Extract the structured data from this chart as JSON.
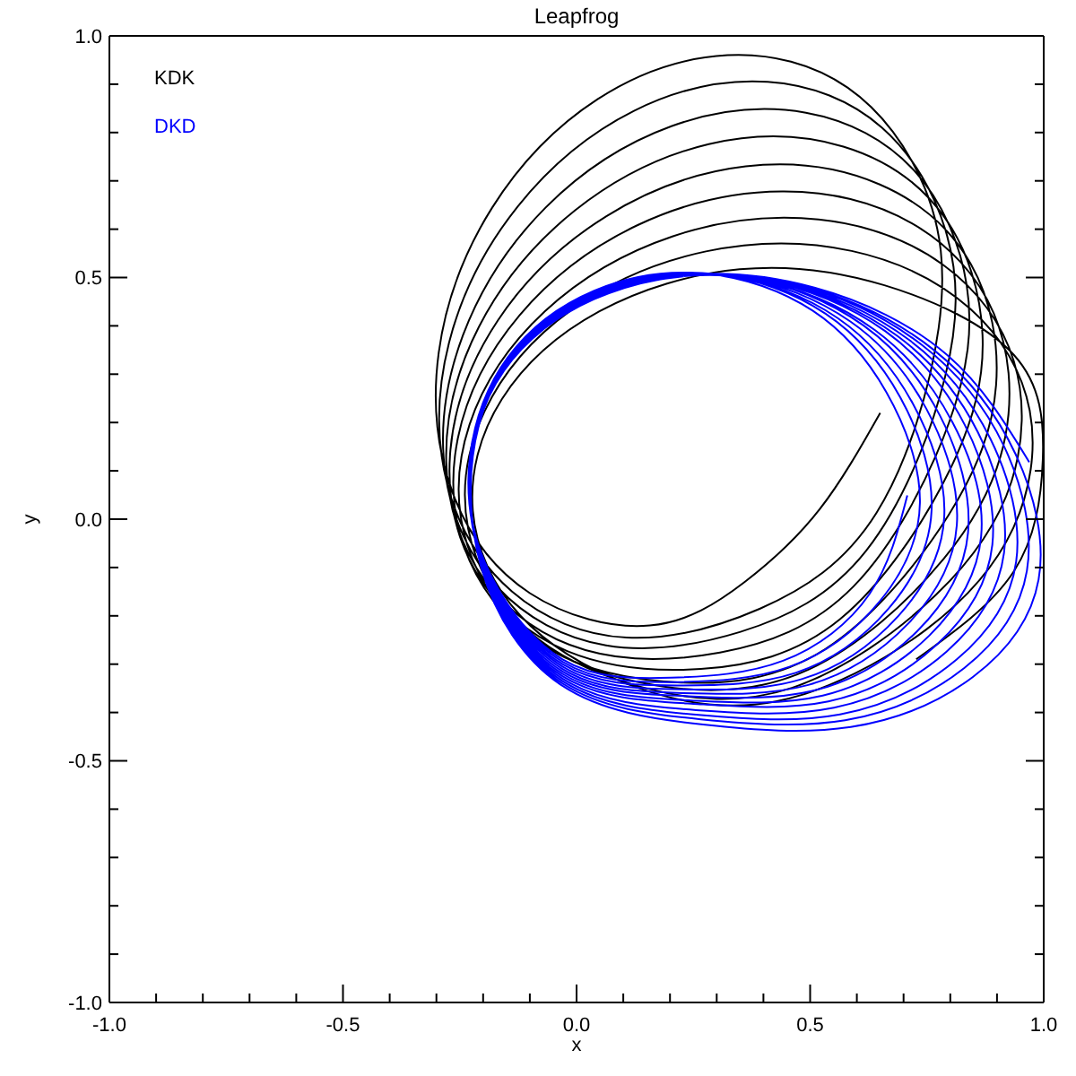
{
  "chart_data": {
    "type": "line",
    "title": "Leapfrog",
    "xlabel": "x",
    "ylabel": "y",
    "xlim": [
      -1,
      1
    ],
    "ylim": [
      -1,
      1
    ],
    "xticks": [
      {
        "value": -1,
        "label": "-1.0"
      },
      {
        "value": -0.9,
        "label": null
      },
      {
        "value": -0.8,
        "label": null
      },
      {
        "value": -0.7,
        "label": null
      },
      {
        "value": -0.6,
        "label": null
      },
      {
        "value": -0.5,
        "label": "-0.5"
      },
      {
        "value": -0.4,
        "label": null
      },
      {
        "value": -0.3,
        "label": null
      },
      {
        "value": -0.2,
        "label": null
      },
      {
        "value": -0.1,
        "label": null
      },
      {
        "value": 0,
        "label": "0.0"
      },
      {
        "value": 0.1,
        "label": null
      },
      {
        "value": 0.2,
        "label": null
      },
      {
        "value": 0.3,
        "label": null
      },
      {
        "value": 0.4,
        "label": null
      },
      {
        "value": 0.5,
        "label": "0.5"
      },
      {
        "value": 0.6,
        "label": null
      },
      {
        "value": 0.7,
        "label": null
      },
      {
        "value": 0.8,
        "label": null
      },
      {
        "value": 0.9,
        "label": null
      },
      {
        "value": 1,
        "label": "1.0"
      }
    ],
    "yticks": [
      {
        "value": -1,
        "label": "-1.0"
      },
      {
        "value": -0.9,
        "label": null
      },
      {
        "value": -0.8,
        "label": null
      },
      {
        "value": -0.7,
        "label": null
      },
      {
        "value": -0.6,
        "label": null
      },
      {
        "value": -0.5,
        "label": "-0.5"
      },
      {
        "value": -0.4,
        "label": null
      },
      {
        "value": -0.3,
        "label": null
      },
      {
        "value": -0.2,
        "label": null
      },
      {
        "value": -0.1,
        "label": null
      },
      {
        "value": 0,
        "label": "0.0"
      },
      {
        "value": 0.1,
        "label": null
      },
      {
        "value": 0.2,
        "label": null
      },
      {
        "value": 0.3,
        "label": null
      },
      {
        "value": 0.4,
        "label": null
      },
      {
        "value": 0.5,
        "label": "0.5"
      },
      {
        "value": 0.6,
        "label": null
      },
      {
        "value": 0.7,
        "label": null
      },
      {
        "value": 0.8,
        "label": null
      },
      {
        "value": 0.9,
        "label": null
      },
      {
        "value": 1,
        "label": "1.0"
      }
    ],
    "legend": "top left",
    "marker": "none",
    "line_style": "solid",
    "series": [
      {
        "name": "KDK",
        "color": "#000000",
        "x": [
          0.65,
          0.52,
          0.36,
          0.157,
          -0.1,
          -0.265,
          -0.295,
          -0.181,
          0.045,
          0.323,
          0.58,
          0.745,
          0.775,
          0.642,
          0.393,
          0.107,
          -0.138,
          -0.277,
          -0.273,
          -0.126,
          0.123,
          0.409,
          0.654,
          0.793,
          0.789,
          0.62,
          0.351,
          0.063,
          -0.169,
          -0.281,
          -0.243,
          -0.066,
          0.203,
          0.491,
          0.723,
          0.835,
          0.797,
          0.593,
          0.307,
          0.019,
          -0.196,
          -0.279,
          -0.209,
          -0.003,
          0.283,
          0.571,
          0.786,
          0.869,
          0.799,
          0.564,
          0.266,
          -0.02,
          -0.216,
          -0.27,
          -0.168,
          0.064,
          0.362,
          0.648,
          0.844,
          0.898,
          0.796,
          0.532,
          0.224,
          -0.054,
          -0.229,
          -0.254,
          -0.122,
          0.132,
          0.44,
          0.718,
          0.893,
          0.918,
          0.786,
          0.497,
          0.184,
          -0.083,
          -0.234,
          -0.229,
          -0.068,
          0.205,
          0.518,
          0.785,
          0.936,
          0.931,
          0.77,
          0.461,
          0.149,
          -0.105,
          -0.232,
          -0.197,
          -0.011,
          0.277,
          0.589,
          0.843,
          0.97,
          0.935,
          0.749,
          0.427,
          0.117,
          -0.12,
          -0.222,
          -0.16,
          0.049,
          0.349,
          0.659,
          0.936,
          0.998,
          0.936,
          0.727
        ],
        "values": [
          0.22,
          0.02,
          -0.13,
          -0.22,
          -0.153,
          0.054,
          0.345,
          0.644,
          0.869,
          0.96,
          0.893,
          0.686,
          0.395,
          0.013,
          -0.185,
          -0.245,
          -0.15,
          0.073,
          0.365,
          0.647,
          0.845,
          0.905,
          0.81,
          0.587,
          0.295,
          -0.065,
          -0.233,
          -0.261,
          -0.141,
          0.095,
          0.381,
          0.645,
          0.813,
          0.841,
          0.721,
          0.485,
          0.199,
          -0.139,
          -0.276,
          -0.271,
          -0.127,
          0.119,
          0.398,
          0.639,
          0.776,
          0.771,
          0.627,
          0.381,
          0.102,
          -0.207,
          -0.31,
          -0.273,
          -0.108,
          0.143,
          0.412,
          0.627,
          0.73,
          0.693,
          0.528,
          0.277,
          0.008,
          -0.269,
          -0.338,
          -0.272,
          -0.086,
          0.168,
          0.422,
          0.609,
          0.678,
          0.612,
          0.426,
          0.172,
          -0.082,
          -0.311,
          -0.346,
          -0.252,
          -0.053,
          0.196,
          0.43,
          0.585,
          0.62,
          0.526,
          0.327,
          0.078,
          -0.156,
          -0.349,
          -0.35,
          -0.23,
          -0.02,
          0.223,
          0.433,
          0.554,
          0.555,
          0.435,
          0.225,
          -0.018,
          -0.228,
          -0.377,
          -0.344,
          -0.2,
          0.017,
          0.248,
          0.43,
          0.517,
          0.484,
          0.34,
          0.123,
          -0.108,
          -0.29
        ]
      },
      {
        "name": "DKD",
        "color": "#0000ff",
        "x": [
          0.708,
          0.627,
          0.442,
          0.203,
          -0.03,
          -0.196,
          -0.228,
          -0.147,
          0.038,
          0.277,
          0.506,
          0.663,
          0.735,
          0.649,
          0.457,
          0.21,
          -0.03,
          -0.197,
          -0.227,
          -0.141,
          0.051,
          0.298,
          0.533,
          0.693,
          0.76,
          0.668,
          0.469,
          0.215,
          -0.03,
          -0.197,
          -0.226,
          -0.134,
          0.065,
          0.319,
          0.559,
          0.72,
          0.787,
          0.689,
          0.482,
          0.221,
          -0.03,
          -0.198,
          -0.225,
          -0.127,
          0.08,
          0.341,
          0.586,
          0.749,
          0.814,
          0.71,
          0.496,
          0.227,
          -0.03,
          -0.199,
          -0.224,
          -0.12,
          0.094,
          0.363,
          0.614,
          0.778,
          0.838,
          0.729,
          0.507,
          0.232,
          -0.03,
          -0.199,
          -0.222,
          -0.113,
          0.109,
          0.384,
          0.639,
          0.805,
          0.866,
          0.755,
          0.527,
          0.245,
          -0.03,
          -0.2,
          -0.222,
          -0.111,
          0.117,
          0.399,
          0.661,
          0.831,
          0.89,
          0.773,
          0.539,
          0.25,
          -0.03,
          -0.201,
          -0.22,
          -0.103,
          0.131,
          0.42,
          0.687,
          0.859,
          0.915,
          0.792,
          0.551,
          0.256,
          -0.03,
          -0.201,
          -0.217,
          -0.094,
          0.147,
          0.442,
          0.713,
          0.886,
          0.941,
          0.813,
          0.564,
          0.261,
          -0.03,
          -0.202,
          -0.215,
          -0.087,
          0.162,
          0.465,
          0.74,
          0.915,
          0.964,
          0.83,
          0.575,
          0.266,
          -0.03,
          -0.203,
          -0.212,
          -0.078,
          0.177,
          0.486,
          0.765,
          0.94,
          0.989,
          0.849,
          0.587,
          0.271,
          -0.03,
          -0.204,
          -0.209,
          -0.069,
          0.193,
          0.509,
          0.793,
          0.969
        ],
        "values": [
          0.049,
          -0.155,
          -0.293,
          -0.328,
          -0.29,
          -0.09,
          0.131,
          0.335,
          0.473,
          0.508,
          0.431,
          0.263,
          0.034,
          -0.17,
          -0.305,
          -0.337,
          -0.295,
          -0.091,
          0.136,
          0.34,
          0.475,
          0.507,
          0.425,
          0.252,
          0.019,
          -0.185,
          -0.318,
          -0.344,
          -0.3,
          -0.092,
          0.141,
          0.345,
          0.478,
          0.504,
          0.416,
          0.239,
          0.004,
          -0.2,
          -0.331,
          -0.352,
          -0.305,
          -0.092,
          0.146,
          0.35,
          0.481,
          0.502,
          0.409,
          0.228,
          -0.012,
          -0.216,
          -0.343,
          -0.36,
          -0.31,
          -0.093,
          0.152,
          0.356,
          0.483,
          0.5,
          0.401,
          0.214,
          -0.028,
          -0.232,
          -0.355,
          -0.366,
          -0.315,
          -0.094,
          0.158,
          0.362,
          0.485,
          0.496,
          0.391,
          0.2,
          -0.036,
          -0.241,
          -0.365,
          -0.375,
          -0.32,
          -0.095,
          0.156,
          0.361,
          0.485,
          0.495,
          0.389,
          0.195,
          -0.053,
          -0.258,
          -0.377,
          -0.382,
          -0.325,
          -0.096,
          0.163,
          0.368,
          0.487,
          0.492,
          0.379,
          0.18,
          -0.07,
          -0.274,
          -0.39,
          -0.395,
          -0.33,
          -0.097,
          0.17,
          0.374,
          0.49,
          0.489,
          0.37,
          0.166,
          -0.088,
          -0.291,
          -0.404,
          -0.405,
          -0.335,
          -0.098,
          0.178,
          0.381,
          0.494,
          0.486,
          0.36,
          0.151,
          -0.107,
          -0.308,
          -0.416,
          -0.414,
          -0.34,
          -0.099,
          0.187,
          0.388,
          0.496,
          0.482,
          0.35,
          0.134,
          -0.125,
          -0.326,
          -0.43,
          -0.425,
          -0.345,
          -0.1,
          0.195,
          0.396,
          0.5,
          0.479,
          0.34,
          0.118
        ]
      }
    ]
  }
}
